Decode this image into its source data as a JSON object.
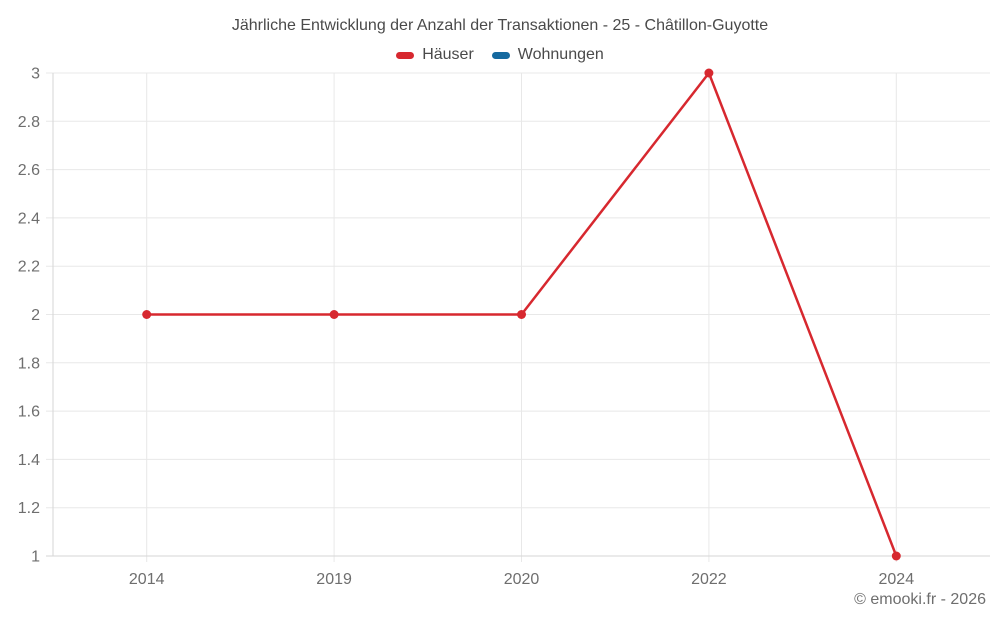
{
  "header": {
    "title": "Jährliche Entwicklung der Anzahl der Transaktionen - 25 - Châtillon-Guyotte"
  },
  "footer": {
    "credit": "© emooki.fr - 2026"
  },
  "chart_data": {
    "type": "line",
    "title": "Jährliche Entwicklung der Anzahl der Transaktionen - 25 - Châtillon-Guyotte",
    "categories": [
      "2014",
      "2019",
      "2020",
      "2022",
      "2024"
    ],
    "series": [
      {
        "name": "Häuser",
        "color": "#d7282f",
        "values": [
          2,
          2,
          2,
          3,
          1
        ]
      },
      {
        "name": "Wohnungen",
        "color": "#15699f",
        "values": []
      }
    ],
    "xlabel": "",
    "ylabel": "",
    "ylim": [
      1,
      3
    ],
    "yticks": [
      "1",
      "1.2",
      "1.4",
      "1.6",
      "1.8",
      "2",
      "2.2",
      "2.4",
      "2.6",
      "2.8",
      "3"
    ],
    "grid": true,
    "legend_position": "top",
    "grid_color": "#e8e8e8",
    "axis_color": "#d6d6d6",
    "tick_label_color": "#6e6e6e"
  }
}
